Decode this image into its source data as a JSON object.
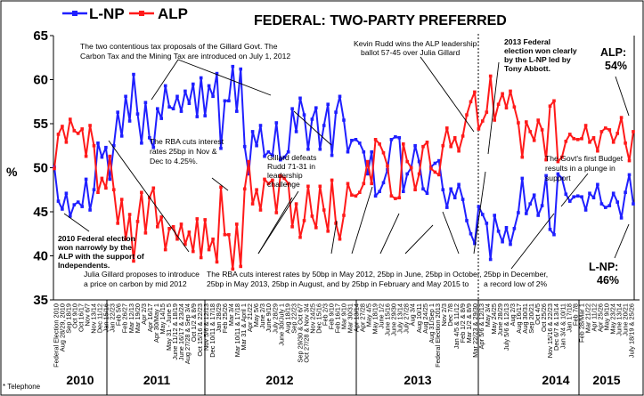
{
  "chart_data": {
    "type": "line",
    "title": "FEDERAL: TWO-PARTY PREFERRED",
    "ylabel": "%",
    "ylim": [
      35,
      65
    ],
    "yticks": [
      35,
      40,
      45,
      50,
      55,
      60,
      65
    ],
    "footnote": "* Telephone",
    "series": [
      {
        "name": "L-NP",
        "color": "#1f1fff"
      },
      {
        "name": "ALP",
        "color": "#ff1a1a"
      }
    ],
    "years": [
      "2010",
      "2011",
      "2012",
      "2013",
      "2014",
      "2015"
    ],
    "x_labels": [
      "Federal Election 2010",
      "Aug 28/29, 2010",
      "Sep 18/19",
      "Oct 9/10",
      "Oct 16/17",
      "Nov 6/7",
      "Nov 13/14",
      "Dec 11/12",
      "Jan 15/16",
      "Jan 22/23",
      "Feb 5/6",
      "Feb 26/27",
      "Mar 12/13",
      "Mar 19/20",
      "Apr 2/3",
      "Apr 16/17",
      "Apr 30/May 1",
      "May 14/15",
      "May 31 - June 5",
      "June 11/12 & 18/19",
      "June 16/17 & 23/24",
      "Aug 27/28 & Sep 3/4",
      "Oct 1/2 & 8/9",
      "Oct 15/16 & 22/23",
      "Nov 5/6 & 12/13",
      "Dec 10/11 & 17/18",
      "Jan 28/29",
      "Feb 25/26",
      "Mar 3/4",
      "Mar 10/11 & 17/18",
      "Mar 31 & April 1",
      "Apr 21/22",
      "May 5/6",
      "June 2/3",
      "June 9/10",
      "July 28/29",
      "June 30/July 1",
      "Aug 18/19",
      "Sep 22/23",
      "Sep 29/30 & Oct 6/7",
      "Oct 27/28 & Nov 3/4",
      "Nov 24/25",
      "Dec 15/16",
      "Feb 2/3",
      "Feb 9/10",
      "Feb 16/17",
      "Mar 9/10",
      "Mar 30/31",
      "Apr 13/14",
      "Apr 27/28",
      "May 4/5",
      "May 18/19",
      "June 1/2",
      "June 15/16",
      "June 29/30",
      "July 13/14",
      "July 27/28",
      "Aug 3/4",
      "Aug 10/11",
      "Aug 24/25",
      "Aug 31/Sep 1",
      "Federal Election 2013",
      "Nov 2/3",
      "Dec 7/8",
      "Jan 4/5 & 11/12",
      "Feb 1/2 & 8/9",
      "Mar 1/2 & 8/9",
      "Mar 22/23 & 29/30",
      "Apr 5/6 & 12/13",
      "May 3/4",
      "May 24/25",
      "June 28/29",
      "July 5/6 & 12/13",
      "Aug 2/3",
      "Aug 16/17",
      "Aug 30/31",
      "Sep 20/21",
      "Oct 4/5",
      "Oct 25/26",
      "Nov 15/16 & 22/23",
      "Dec 6/7 & 13/14",
      "Jan 3/4 & 10/11",
      "Jan 17/18",
      "Feb 7/8",
      "Feb 28/Mar 1",
      "Mar 21/22",
      "Apr 11/12",
      "Apr 25/26",
      "May 9/10",
      "May 23/24",
      "June 13/14",
      "June 20/21",
      "July 18/19 & 25/26"
    ],
    "lnp": [
      50.1,
      46.2,
      45.3,
      47.1,
      44.5,
      45.8,
      46.1,
      45.6,
      48.7,
      45.2,
      47.5,
      52.8,
      51.2,
      52.3,
      48.7,
      52.5,
      56.3,
      53.6,
      58.1,
      55.3,
      60.6,
      56.1,
      52.8,
      57.4,
      53.4,
      52.3,
      56.7,
      55.6,
      59.3,
      56.9,
      56.7,
      58.1,
      56.4,
      58.7,
      57.3,
      59.5,
      55.8,
      60.2,
      55.9,
      59.3,
      58.1,
      60.7,
      52.2,
      57.6,
      57.6,
      61.5,
      56.4,
      61.2,
      52.4,
      49.3,
      54.1,
      52.5,
      54.8,
      51.3,
      51.8,
      51.4,
      55.1,
      50.9,
      51.2,
      51.8,
      56.7,
      54.1,
      57.9,
      56.0,
      52.1,
      55.5,
      56.8,
      52.1,
      54.8,
      57.2,
      51.4,
      56.3,
      58.1,
      55.4,
      51.8,
      53.1,
      53.2,
      52.8,
      51.8,
      49.3,
      51.8,
      46.8,
      47.3,
      48.3,
      49.8,
      53.2,
      53.5,
      53.4,
      47.3,
      49.3,
      50.0,
      52.5,
      50.7,
      47.6,
      47.1,
      50.1,
      50.5,
      50.8,
      47.5,
      45.5,
      47.6,
      46.6,
      48.1,
      46.4,
      44.0,
      42.5,
      41.4,
      45.6,
      44.7,
      43.7,
      39.6,
      44.6,
      42.8,
      41.6,
      43.2,
      41.3,
      43.1,
      44.9,
      48.8,
      44.8,
      45.9,
      46.9,
      44.6,
      45.7,
      49.1,
      43.0,
      42.4,
      49.3,
      48.8,
      47.0,
      46.2,
      46.7,
      46.8,
      46.7,
      45.2,
      47.1,
      46.6,
      48.1,
      45.9,
      45.5,
      45.7,
      47.1,
      46.1,
      44.3,
      47.2,
      49.2,
      45.9
    ],
    "alp": [
      49.9,
      53.8,
      54.7,
      52.9,
      55.5,
      54.2,
      53.9,
      54.4,
      51.3,
      54.8,
      52.5,
      47.2,
      48.8,
      47.7,
      51.3,
      47.5,
      43.7,
      46.4,
      41.9,
      44.7,
      39.4,
      43.9,
      47.2,
      42.6,
      46.6,
      47.7,
      43.3,
      44.4,
      40.7,
      43.1,
      43.3,
      41.9,
      43.6,
      41.3,
      42.7,
      40.5,
      44.2,
      39.8,
      44.1,
      40.7,
      41.9,
      39.3,
      47.8,
      42.4,
      42.4,
      38.5,
      43.6,
      38.8,
      47.6,
      50.7,
      45.9,
      47.5,
      45.2,
      48.7,
      48.2,
      48.6,
      44.9,
      49.1,
      48.8,
      48.2,
      43.3,
      45.9,
      42.1,
      44.0,
      47.9,
      44.5,
      43.2,
      47.9,
      45.2,
      42.8,
      48.6,
      43.7,
      41.9,
      44.6,
      48.2,
      46.9,
      46.8,
      47.2,
      48.2,
      50.7,
      48.2,
      53.2,
      52.7,
      51.7,
      50.2,
      46.8,
      46.5,
      46.6,
      52.7,
      50.7,
      50.0,
      47.5,
      49.3,
      52.4,
      52.9,
      49.9,
      49.5,
      49.2,
      52.5,
      54.5,
      52.4,
      53.4,
      51.9,
      53.6,
      56.0,
      57.5,
      58.6,
      54.4,
      55.3,
      56.3,
      60.4,
      55.4,
      57.2,
      58.4,
      56.8,
      58.7,
      56.9,
      55.1,
      51.2,
      55.2,
      54.1,
      53.1,
      55.4,
      54.3,
      50.9,
      57.0,
      57.6,
      50.7,
      51.2,
      53.0,
      53.8,
      53.3,
      53.2,
      53.3,
      54.8,
      52.9,
      53.4,
      51.9,
      54.1,
      54.5,
      54.3,
      52.9,
      53.9,
      55.7,
      52.8,
      50.8,
      54.1
    ]
  },
  "legend": {
    "lnp_label": "L-NP",
    "alp_label": "ALP"
  },
  "end_labels": {
    "alp_label": "ALP:",
    "alp_value": "54%",
    "lnp_label": "L-NP:",
    "lnp_value": "46%"
  },
  "annotations": {
    "a1": [
      "The two contentious tax proposals of the Gillard Govt. The",
      "Carbon Tax and the Mining Tax are introduced on July 1, 2012"
    ],
    "a2": [
      "Kevin Rudd wins the ALP leadership",
      "ballot 57-45 over Julia Gillard"
    ],
    "a3": [
      "2013 Federal",
      "election won clearly",
      "by the L-NP led by",
      "Tony Abbott."
    ],
    "a4": [
      "The RBA cuts interest",
      "rates 25bp in Nov &",
      "Dec to 4.25%."
    ],
    "a5": [
      "Gillard defeats",
      "Rudd 71-31 in",
      "leadership",
      "challenge"
    ],
    "a6": [
      "The Govt's first Budget",
      "results in a plunge in",
      "support"
    ],
    "a7": [
      "2010 Federal election",
      "won narrowly by the",
      "ALP with the support of",
      "Independents."
    ],
    "a8": [
      "Julia Gillard proposes to introduce",
      "a price on carbon by mid 2012"
    ],
    "a9": [
      "The RBA cuts interest rates by 50bp in May 2012, 25bp in June, 25bp in October,",
      "25bp  in  May  2013,  25bp in August, and by 25bp  in  February and May 2015 to"
    ],
    "a10": [
      "25bp in December,",
      "a record low of 2%"
    ]
  }
}
